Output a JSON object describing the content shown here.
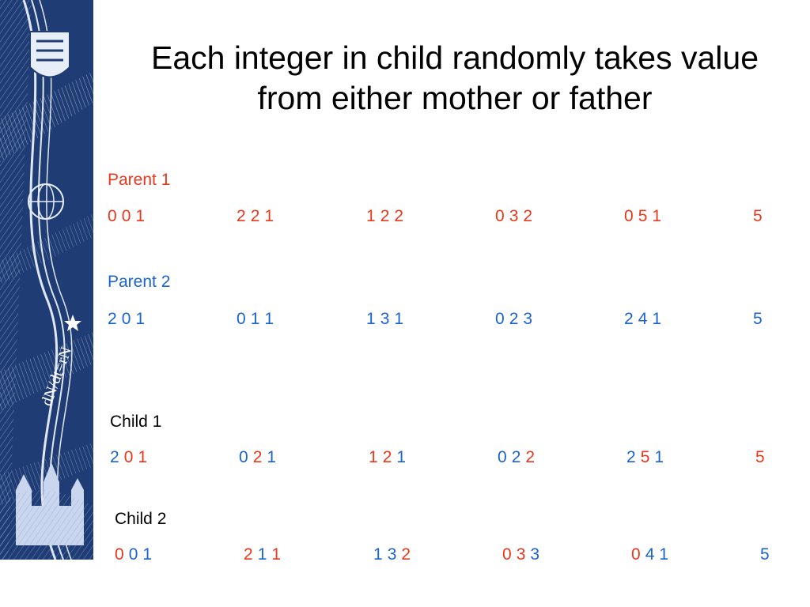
{
  "slide": {
    "title_line1": "Each integer in child randomly takes value",
    "title_line2": "from either mother or father",
    "colors": {
      "parent1": "#e8371b",
      "parent2": "#1a63d0",
      "sidebar": "#1f3d74"
    },
    "sidebar_art": {
      "decorative_icon": "crest-shield-icon",
      "equation_text": "dN/dt=rN"
    }
  },
  "parent1": {
    "label": "Parent 1",
    "groups": [
      {
        "digits": [
          {
            "v": "0",
            "src": "p1"
          },
          {
            "v": "0",
            "src": "p1"
          },
          {
            "v": "1",
            "src": "p1"
          }
        ]
      },
      {
        "digits": [
          {
            "v": "2",
            "src": "p1"
          },
          {
            "v": "2",
            "src": "p1"
          },
          {
            "v": "1",
            "src": "p1"
          }
        ]
      },
      {
        "digits": [
          {
            "v": "1",
            "src": "p1"
          },
          {
            "v": "2",
            "src": "p1"
          },
          {
            "v": "2",
            "src": "p1"
          }
        ]
      },
      {
        "digits": [
          {
            "v": "0",
            "src": "p1"
          },
          {
            "v": "3",
            "src": "p1"
          },
          {
            "v": "2",
            "src": "p1"
          }
        ]
      },
      {
        "digits": [
          {
            "v": "0",
            "src": "p1"
          },
          {
            "v": "5",
            "src": "p1"
          },
          {
            "v": "1",
            "src": "p1"
          }
        ]
      },
      {
        "digits": [
          {
            "v": "5",
            "src": "p1"
          }
        ]
      }
    ]
  },
  "parent2": {
    "label": "Parent 2",
    "groups": [
      {
        "digits": [
          {
            "v": "2",
            "src": "p2"
          },
          {
            "v": "0",
            "src": "p2"
          },
          {
            "v": "1",
            "src": "p2"
          }
        ]
      },
      {
        "digits": [
          {
            "v": "0",
            "src": "p2"
          },
          {
            "v": "1",
            "src": "p2"
          },
          {
            "v": "1",
            "src": "p2"
          }
        ]
      },
      {
        "digits": [
          {
            "v": "1",
            "src": "p2"
          },
          {
            "v": "3",
            "src": "p2"
          },
          {
            "v": "1",
            "src": "p2"
          }
        ]
      },
      {
        "digits": [
          {
            "v": "0",
            "src": "p2"
          },
          {
            "v": "2",
            "src": "p2"
          },
          {
            "v": "3",
            "src": "p2"
          }
        ]
      },
      {
        "digits": [
          {
            "v": "2",
            "src": "p2"
          },
          {
            "v": "4",
            "src": "p2"
          },
          {
            "v": "1",
            "src": "p2"
          }
        ]
      },
      {
        "digits": [
          {
            "v": "5",
            "src": "p2"
          }
        ]
      }
    ]
  },
  "child1": {
    "label": "Child 1",
    "groups": [
      {
        "digits": [
          {
            "v": "2",
            "src": "p2"
          },
          {
            "v": "0",
            "src": "p1"
          },
          {
            "v": "1",
            "src": "p1"
          }
        ]
      },
      {
        "digits": [
          {
            "v": "0",
            "src": "p2"
          },
          {
            "v": "2",
            "src": "p1"
          },
          {
            "v": "1",
            "src": "p2"
          }
        ]
      },
      {
        "digits": [
          {
            "v": "1",
            "src": "p1"
          },
          {
            "v": "2",
            "src": "p1"
          },
          {
            "v": "1",
            "src": "p2"
          }
        ]
      },
      {
        "digits": [
          {
            "v": "0",
            "src": "p2"
          },
          {
            "v": "2",
            "src": "p2"
          },
          {
            "v": "2",
            "src": "p1"
          }
        ]
      },
      {
        "digits": [
          {
            "v": "2",
            "src": "p2"
          },
          {
            "v": "5",
            "src": "p1"
          },
          {
            "v": "1",
            "src": "p2"
          }
        ]
      },
      {
        "digits": [
          {
            "v": "5",
            "src": "p1"
          }
        ]
      }
    ]
  },
  "child2": {
    "label": "Child 2",
    "groups": [
      {
        "digits": [
          {
            "v": "0",
            "src": "p1"
          },
          {
            "v": "0",
            "src": "p2"
          },
          {
            "v": "1",
            "src": "p2"
          }
        ]
      },
      {
        "digits": [
          {
            "v": "2",
            "src": "p1"
          },
          {
            "v": "1",
            "src": "p2"
          },
          {
            "v": "1",
            "src": "p1"
          }
        ]
      },
      {
        "digits": [
          {
            "v": "1",
            "src": "p2"
          },
          {
            "v": "3",
            "src": "p2"
          },
          {
            "v": "2",
            "src": "p1"
          }
        ]
      },
      {
        "digits": [
          {
            "v": "0",
            "src": "p1"
          },
          {
            "v": "3",
            "src": "p1"
          },
          {
            "v": "3",
            "src": "p2"
          }
        ]
      },
      {
        "digits": [
          {
            "v": "0",
            "src": "p1"
          },
          {
            "v": "4",
            "src": "p2"
          },
          {
            "v": "1",
            "src": "p2"
          }
        ]
      },
      {
        "digits": [
          {
            "v": "5",
            "src": "p2"
          }
        ]
      }
    ]
  }
}
